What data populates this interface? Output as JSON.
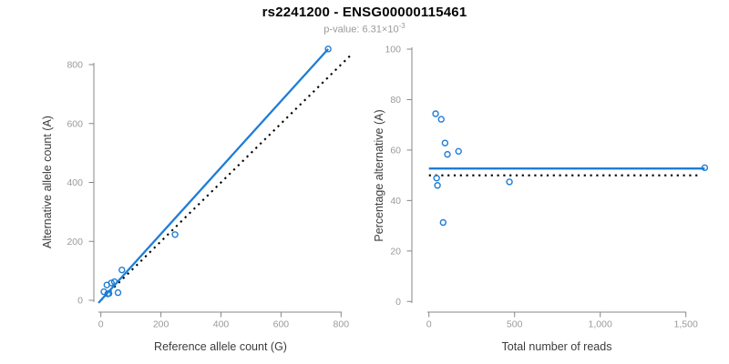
{
  "header": {
    "title": "rs2241200 - ENSG00000115461",
    "subtitle_base": "p-value: 6.31×10",
    "subtitle_exponent": "-3"
  },
  "colors": {
    "accent_blue": "#1e7dd7",
    "dotted_line": "#000000",
    "axis_line": "#878787",
    "tick_label": "#9a9a9a",
    "axis_title": "#3c3c3c",
    "title_text": "#050505",
    "subtitle_text": "#9a9a9a"
  },
  "chart_data": [
    {
      "type": "scatter",
      "name": "allele-counts-plot",
      "xlabel": "Reference allele count (G)",
      "ylabel": "Alternative allele count (A)",
      "xlim": [
        0,
        800
      ],
      "ylim": [
        0,
        800
      ],
      "xticks": [
        0,
        200,
        400,
        600,
        800
      ],
      "xtick_labels": [
        "0",
        "200",
        "400",
        "600",
        "800"
      ],
      "yticks": [
        0,
        200,
        400,
        600,
        800
      ],
      "ytick_labels": [
        "0",
        "200",
        "400",
        "600",
        "800"
      ],
      "grid": false,
      "lines": [
        {
          "name": "identity-line",
          "style": "dotted",
          "color": "#000000",
          "x": [
            0,
            839
          ],
          "y": [
            0,
            839
          ]
        },
        {
          "name": "fit-line",
          "style": "solid",
          "color": "#1e7dd7",
          "x": [
            -8,
            757
          ],
          "y": [
            -9,
            853
          ]
        }
      ],
      "points": [
        [
          10,
          29
        ],
        [
          20,
          52
        ],
        [
          35,
          59
        ],
        [
          45,
          63
        ],
        [
          70,
          103
        ],
        [
          23,
          22
        ],
        [
          27,
          23
        ],
        [
          57,
          26
        ],
        [
          247,
          223
        ],
        [
          757,
          853
        ]
      ]
    },
    {
      "type": "scatter",
      "name": "percentage-vs-reads-plot",
      "xlabel": "Total number of reads",
      "ylabel": "Percentage alternative (A)",
      "xlim": [
        0,
        1500
      ],
      "ylim": [
        0,
        100
      ],
      "xticks": [
        0,
        500,
        1000,
        1500
      ],
      "xtick_labels": [
        "0",
        "500",
        "1,000",
        "1,500"
      ],
      "yticks": [
        0,
        20,
        40,
        60,
        80,
        100
      ],
      "ytick_labels": [
        "0",
        "20",
        "40",
        "60",
        "80",
        "100"
      ],
      "grid": false,
      "lines": [
        {
          "name": "fifty-percent-dotted-line",
          "style": "dotted",
          "color": "#000000",
          "x": [
            0,
            1575
          ],
          "y": [
            50,
            50
          ]
        },
        {
          "name": "mean-percentage-line",
          "style": "solid",
          "color": "#1e7dd7",
          "x": [
            0,
            1610
          ],
          "y": [
            52.7,
            52.7
          ]
        }
      ],
      "points": [
        [
          39,
          74.4
        ],
        [
          72,
          72.2
        ],
        [
          94,
          62.8
        ],
        [
          108,
          58.3
        ],
        [
          173,
          59.5
        ],
        [
          45,
          48.9
        ],
        [
          50,
          46.0
        ],
        [
          83,
          31.3
        ],
        [
          470,
          47.4
        ],
        [
          1610,
          53.0
        ]
      ]
    }
  ]
}
